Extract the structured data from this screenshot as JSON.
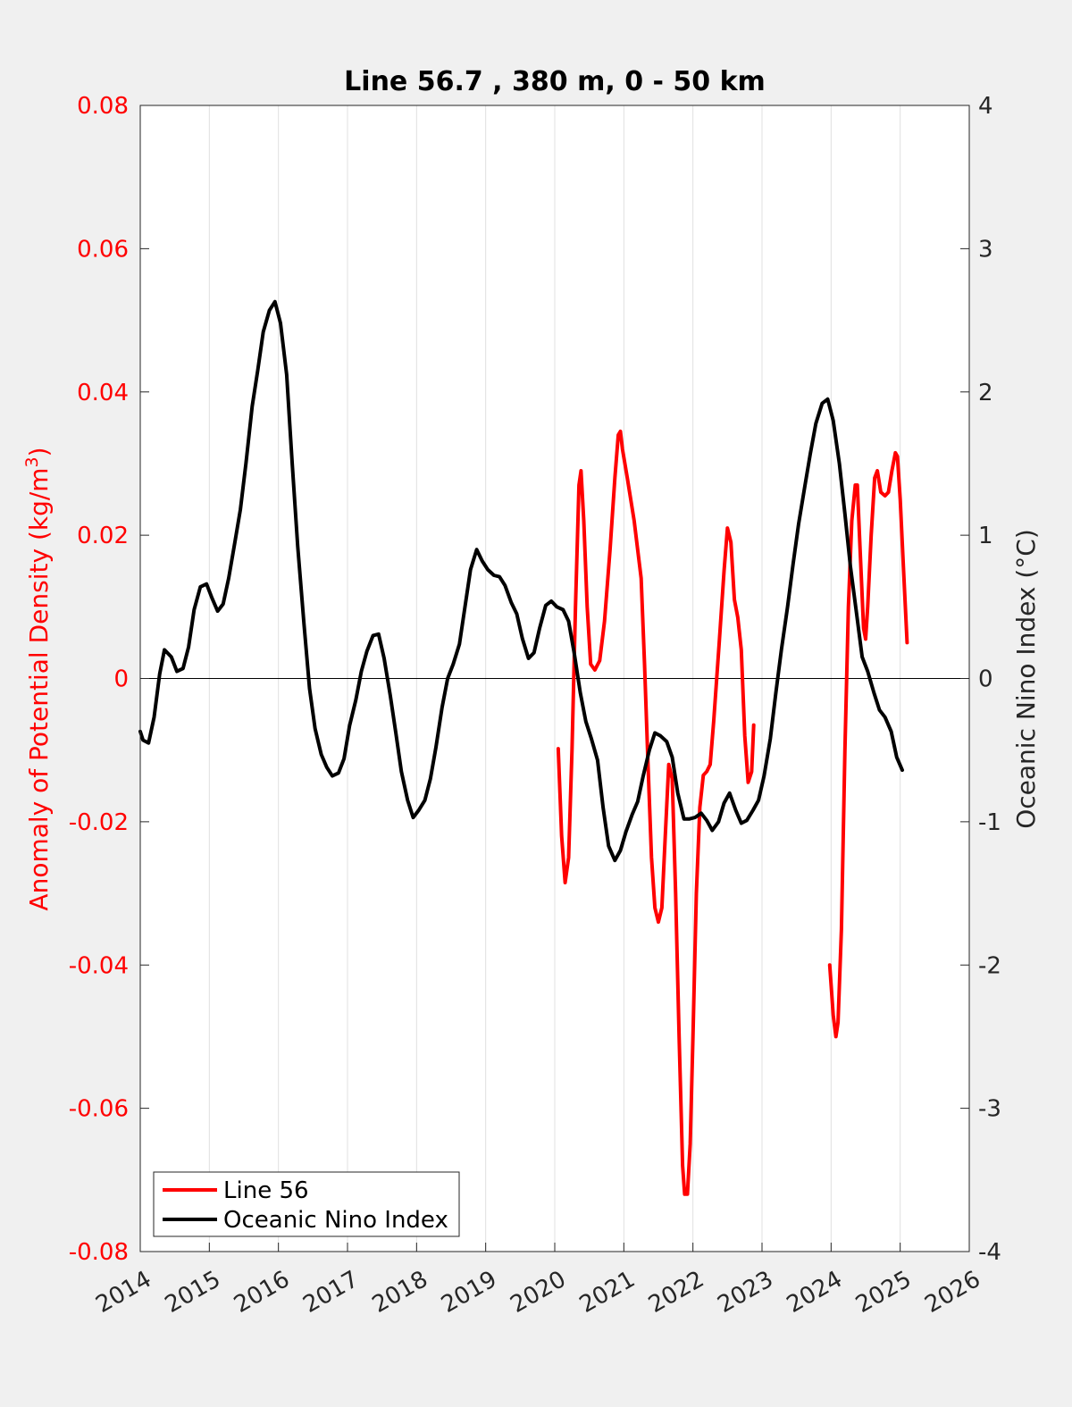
{
  "chart_data": {
    "type": "line",
    "title": "Line 56.7 , 380 m, 0 - 50 km",
    "xlabel": "",
    "xlim": [
      2014,
      2026
    ],
    "x_ticks": [
      "2014",
      "2015",
      "2016",
      "2017",
      "2018",
      "2019",
      "2020",
      "2021",
      "2022",
      "2023",
      "2024",
      "2025",
      "2026"
    ],
    "grid": "vertical",
    "left_axis": {
      "label_main": "Anomaly of Potential Density (kg/m",
      "label_sup": "3",
      "label_end": ")",
      "ylim": [
        -0.08,
        0.08
      ],
      "ticks": [
        "0.08",
        "0.06",
        "0.04",
        "0.02",
        "0",
        "-0.02",
        "-0.04",
        "-0.06",
        "-0.08"
      ],
      "color": "#ff0000"
    },
    "right_axis": {
      "label": "Oceanic Nino Index (°C)",
      "ylim": [
        -4,
        4
      ],
      "ticks": [
        "4",
        "3",
        "2",
        "1",
        "0",
        "-1",
        "-2",
        "-3",
        "-4"
      ],
      "color": "#000000"
    },
    "legend": {
      "placement": "bottom-left"
    },
    "series": [
      {
        "name": "Line 56",
        "axis": "left",
        "color": "#ff0000",
        "segments": [
          [
            [
              2020.05,
              -0.0098
            ],
            [
              2020.1,
              -0.022
            ],
            [
              2020.15,
              -0.0285
            ],
            [
              2020.2,
              -0.025
            ],
            [
              2020.25,
              -0.01
            ],
            [
              2020.3,
              0.01
            ],
            [
              2020.35,
              0.027
            ],
            [
              2020.38,
              0.029
            ],
            [
              2020.42,
              0.022
            ],
            [
              2020.47,
              0.01
            ],
            [
              2020.52,
              0.002
            ],
            [
              2020.58,
              0.0012
            ],
            [
              2020.65,
              0.0025
            ],
            [
              2020.72,
              0.008
            ],
            [
              2020.8,
              0.018
            ],
            [
              2020.87,
              0.028
            ],
            [
              2020.92,
              0.034
            ],
            [
              2020.95,
              0.0345
            ],
            [
              2020.98,
              0.032
            ],
            [
              2021.05,
              0.028
            ],
            [
              2021.15,
              0.022
            ],
            [
              2021.25,
              0.014
            ],
            [
              2021.3,
              0.002
            ],
            [
              2021.35,
              -0.012
            ],
            [
              2021.4,
              -0.025
            ],
            [
              2021.45,
              -0.032
            ],
            [
              2021.5,
              -0.034
            ],
            [
              2021.55,
              -0.032
            ],
            [
              2021.6,
              -0.022
            ],
            [
              2021.65,
              -0.012
            ],
            [
              2021.7,
              -0.014
            ],
            [
              2021.75,
              -0.03
            ],
            [
              2021.8,
              -0.05
            ],
            [
              2021.85,
              -0.068
            ],
            [
              2021.88,
              -0.072
            ],
            [
              2021.92,
              -0.072
            ],
            [
              2021.96,
              -0.065
            ],
            [
              2022.0,
              -0.05
            ],
            [
              2022.05,
              -0.03
            ],
            [
              2022.1,
              -0.018
            ],
            [
              2022.15,
              -0.0135
            ],
            [
              2022.2,
              -0.013
            ],
            [
              2022.25,
              -0.012
            ],
            [
              2022.3,
              -0.006
            ],
            [
              2022.38,
              0.005
            ],
            [
              2022.45,
              0.015
            ],
            [
              2022.5,
              0.021
            ],
            [
              2022.55,
              0.019
            ],
            [
              2022.6,
              0.011
            ],
            [
              2022.65,
              0.0085
            ],
            [
              2022.7,
              0.004
            ],
            [
              2022.75,
              -0.008
            ],
            [
              2022.8,
              -0.0145
            ],
            [
              2022.85,
              -0.013
            ],
            [
              2022.88,
              -0.0065
            ]
          ],
          [
            [
              2023.98,
              -0.04
            ],
            [
              2024.03,
              -0.047
            ],
            [
              2024.07,
              -0.05
            ],
            [
              2024.1,
              -0.048
            ],
            [
              2024.15,
              -0.035
            ],
            [
              2024.2,
              -0.01
            ],
            [
              2024.25,
              0.01
            ],
            [
              2024.3,
              0.022
            ],
            [
              2024.35,
              0.027
            ],
            [
              2024.38,
              0.027
            ],
            [
              2024.42,
              0.018
            ],
            [
              2024.47,
              0.007
            ],
            [
              2024.5,
              0.0055
            ],
            [
              2024.53,
              0.01
            ],
            [
              2024.58,
              0.02
            ],
            [
              2024.63,
              0.028
            ],
            [
              2024.67,
              0.029
            ],
            [
              2024.72,
              0.026
            ],
            [
              2024.78,
              0.0255
            ],
            [
              2024.83,
              0.026
            ],
            [
              2024.88,
              0.029
            ],
            [
              2024.93,
              0.0315
            ],
            [
              2024.96,
              0.031
            ],
            [
              2025.0,
              0.025
            ],
            [
              2025.05,
              0.015
            ],
            [
              2025.1,
              0.005
            ]
          ]
        ]
      },
      {
        "name": "Oceanic Nino Index",
        "axis": "right",
        "color": "#000000",
        "segments": [
          [
            [
              2014.0,
              -0.37
            ],
            [
              2014.04,
              -0.43
            ],
            [
              2014.12,
              -0.45
            ],
            [
              2014.2,
              -0.27
            ],
            [
              2014.28,
              0.03
            ],
            [
              2014.35,
              0.2
            ],
            [
              2014.45,
              0.15
            ],
            [
              2014.53,
              0.05
            ],
            [
              2014.62,
              0.07
            ],
            [
              2014.7,
              0.22
            ],
            [
              2014.78,
              0.48
            ],
            [
              2014.87,
              0.64
            ],
            [
              2014.96,
              0.66
            ],
            [
              2015.04,
              0.56
            ],
            [
              2015.12,
              0.47
            ],
            [
              2015.2,
              0.52
            ],
            [
              2015.28,
              0.7
            ],
            [
              2015.37,
              0.95
            ],
            [
              2015.45,
              1.18
            ],
            [
              2015.53,
              1.5
            ],
            [
              2015.62,
              1.9
            ],
            [
              2015.7,
              2.15
            ],
            [
              2015.78,
              2.42
            ],
            [
              2015.87,
              2.57
            ],
            [
              2015.95,
              2.63
            ],
            [
              2016.03,
              2.48
            ],
            [
              2016.12,
              2.12
            ],
            [
              2016.2,
              1.5
            ],
            [
              2016.28,
              0.92
            ],
            [
              2016.37,
              0.38
            ],
            [
              2016.45,
              -0.07
            ],
            [
              2016.53,
              -0.35
            ],
            [
              2016.62,
              -0.53
            ],
            [
              2016.7,
              -0.62
            ],
            [
              2016.78,
              -0.68
            ],
            [
              2016.87,
              -0.66
            ],
            [
              2016.95,
              -0.56
            ],
            [
              2017.03,
              -0.33
            ],
            [
              2017.12,
              -0.15
            ],
            [
              2017.2,
              0.05
            ],
            [
              2017.28,
              0.19
            ],
            [
              2017.37,
              0.3
            ],
            [
              2017.45,
              0.31
            ],
            [
              2017.53,
              0.14
            ],
            [
              2017.62,
              -0.12
            ],
            [
              2017.7,
              -0.38
            ],
            [
              2017.78,
              -0.65
            ],
            [
              2017.87,
              -0.85
            ],
            [
              2017.95,
              -0.97
            ],
            [
              2018.03,
              -0.92
            ],
            [
              2018.12,
              -0.85
            ],
            [
              2018.2,
              -0.7
            ],
            [
              2018.28,
              -0.48
            ],
            [
              2018.37,
              -0.2
            ],
            [
              2018.45,
              0.0
            ],
            [
              2018.53,
              0.1
            ],
            [
              2018.62,
              0.24
            ],
            [
              2018.7,
              0.5
            ],
            [
              2018.78,
              0.76
            ],
            [
              2018.87,
              0.9
            ],
            [
              2018.95,
              0.82
            ],
            [
              2019.03,
              0.76
            ],
            [
              2019.12,
              0.72
            ],
            [
              2019.2,
              0.71
            ],
            [
              2019.28,
              0.65
            ],
            [
              2019.37,
              0.53
            ],
            [
              2019.45,
              0.45
            ],
            [
              2019.53,
              0.28
            ],
            [
              2019.62,
              0.14
            ],
            [
              2019.7,
              0.18
            ],
            [
              2019.78,
              0.35
            ],
            [
              2019.87,
              0.51
            ],
            [
              2019.95,
              0.54
            ],
            [
              2020.03,
              0.5
            ],
            [
              2020.12,
              0.48
            ],
            [
              2020.2,
              0.4
            ],
            [
              2020.28,
              0.18
            ],
            [
              2020.37,
              -0.1
            ],
            [
              2020.45,
              -0.3
            ],
            [
              2020.53,
              -0.42
            ],
            [
              2020.62,
              -0.57
            ],
            [
              2020.7,
              -0.9
            ],
            [
              2020.78,
              -1.17
            ],
            [
              2020.87,
              -1.27
            ],
            [
              2020.95,
              -1.2
            ],
            [
              2021.03,
              -1.07
            ],
            [
              2021.12,
              -0.95
            ],
            [
              2021.2,
              -0.86
            ],
            [
              2021.28,
              -0.68
            ],
            [
              2021.37,
              -0.5
            ],
            [
              2021.45,
              -0.38
            ],
            [
              2021.53,
              -0.4
            ],
            [
              2021.62,
              -0.44
            ],
            [
              2021.7,
              -0.55
            ],
            [
              2021.78,
              -0.8
            ],
            [
              2021.87,
              -0.98
            ],
            [
              2021.95,
              -0.98
            ],
            [
              2022.03,
              -0.97
            ],
            [
              2022.12,
              -0.94
            ],
            [
              2022.2,
              -0.99
            ],
            [
              2022.28,
              -1.06
            ],
            [
              2022.37,
              -1.0
            ],
            [
              2022.45,
              -0.87
            ],
            [
              2022.53,
              -0.8
            ],
            [
              2022.62,
              -0.92
            ],
            [
              2022.7,
              -1.01
            ],
            [
              2022.78,
              -0.99
            ],
            [
              2022.87,
              -0.92
            ],
            [
              2022.95,
              -0.85
            ],
            [
              2023.03,
              -0.68
            ],
            [
              2023.12,
              -0.42
            ],
            [
              2023.2,
              -0.1
            ],
            [
              2023.28,
              0.2
            ],
            [
              2023.37,
              0.5
            ],
            [
              2023.45,
              0.8
            ],
            [
              2023.53,
              1.08
            ],
            [
              2023.62,
              1.34
            ],
            [
              2023.7,
              1.57
            ],
            [
              2023.78,
              1.78
            ],
            [
              2023.87,
              1.92
            ],
            [
              2023.95,
              1.95
            ],
            [
              2024.03,
              1.8
            ],
            [
              2024.12,
              1.5
            ],
            [
              2024.2,
              1.15
            ],
            [
              2024.28,
              0.78
            ],
            [
              2024.37,
              0.45
            ],
            [
              2024.45,
              0.15
            ],
            [
              2024.53,
              0.05
            ],
            [
              2024.62,
              -0.1
            ],
            [
              2024.7,
              -0.22
            ],
            [
              2024.78,
              -0.27
            ],
            [
              2024.87,
              -0.37
            ],
            [
              2024.95,
              -0.55
            ],
            [
              2025.03,
              -0.64
            ]
          ]
        ]
      }
    ]
  }
}
